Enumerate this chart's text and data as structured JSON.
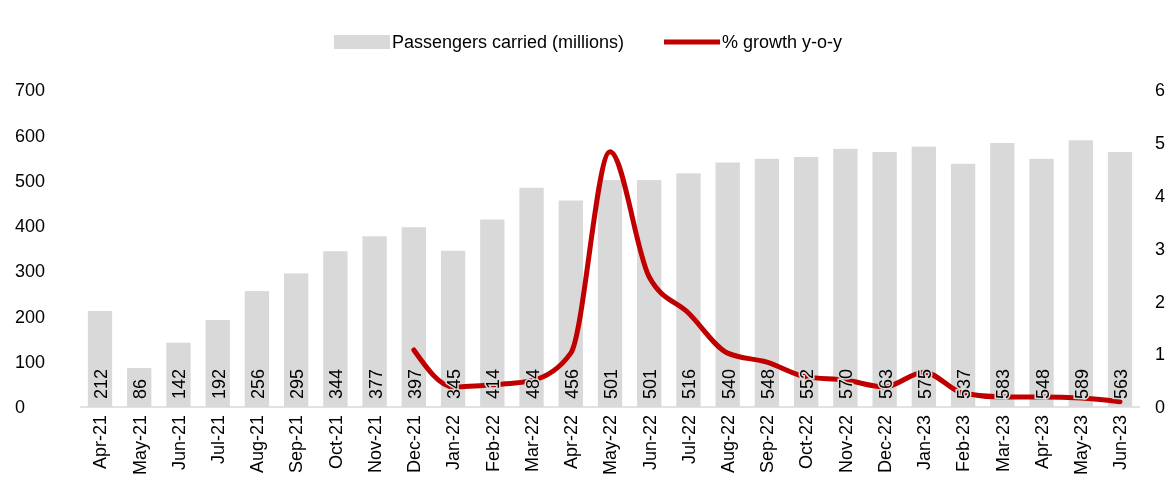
{
  "chart_data": {
    "type": "bar",
    "categories": [
      "Apr-21",
      "May-21",
      "Jun-21",
      "Jul-21",
      "Aug-21",
      "Sep-21",
      "Oct-21",
      "Nov-21",
      "Dec-21",
      "Jan-22",
      "Feb-22",
      "Mar-22",
      "Apr-22",
      "May-22",
      "Jun-22",
      "Jul-22",
      "Aug-22",
      "Sep-22",
      "Oct-22",
      "Nov-22",
      "Dec-22",
      "Jan-23",
      "Feb-23",
      "Mar-23",
      "Apr-23",
      "May-23",
      "Jun-23"
    ],
    "series": [
      {
        "name": "Passengers carried (millions)",
        "color": "#d9d9d9",
        "values": [
          212,
          86,
          142,
          192,
          256,
          295,
          344,
          377,
          397,
          345,
          414,
          484,
          456,
          501,
          501,
          516,
          540,
          548,
          552,
          570,
          563,
          575,
          537,
          583,
          548,
          589,
          563
        ],
        "value_labels": [
          "212",
          "86",
          "142",
          "192",
          "256",
          "295",
          "344",
          "377",
          "397",
          "345",
          "414",
          "484",
          "456",
          "501",
          "501",
          "516",
          "540",
          "548",
          "552",
          "570",
          "563",
          "575",
          "537",
          "583",
          "548",
          "589",
          "563"
        ]
      },
      {
        "name": "% growth y-o-y",
        "type": "line",
        "axis": "y2",
        "color": "#c00000",
        "values": [
          null,
          null,
          null,
          null,
          null,
          null,
          null,
          null,
          1.08,
          0.38,
          0.42,
          0.5,
          1.02,
          4.83,
          2.46,
          1.78,
          1.02,
          0.85,
          0.57,
          0.51,
          0.38,
          0.66,
          0.26,
          0.19,
          0.19,
          0.17,
          0.1
        ]
      }
    ],
    "ylim": [
      0,
      700
    ],
    "yticks": [
      0,
      100,
      200,
      300,
      400,
      500,
      600,
      700
    ],
    "y2lim": [
      0,
      6
    ],
    "y2ticks": [
      0,
      1,
      2,
      3,
      4,
      5,
      6
    ],
    "legend": "top",
    "grid": false,
    "marker": "none",
    "line_style": "solid"
  }
}
